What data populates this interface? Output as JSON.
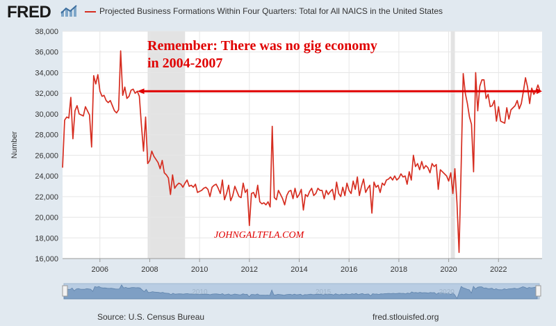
{
  "header": {
    "logo_text": "FRED",
    "logo_icon": "chart-line-icon"
  },
  "chart_data": {
    "type": "line",
    "title": "Projected Business Formations Within Four Quarters: Total for All NAICS in the United States",
    "xlabel": "",
    "ylabel": "Number",
    "ylim": [
      16000,
      38000
    ],
    "xlim": [
      "2004-07",
      "2023-10"
    ],
    "y_ticks": [
      16000,
      18000,
      20000,
      22000,
      24000,
      26000,
      28000,
      30000,
      32000,
      34000,
      36000,
      38000
    ],
    "y_tick_labels": [
      "16,000",
      "18,000",
      "20,000",
      "22,000",
      "24,000",
      "26,000",
      "28,000",
      "30,000",
      "32,000",
      "34,000",
      "36,000",
      "38,000"
    ],
    "x_tick_labels": [
      "2006",
      "2008",
      "2010",
      "2012",
      "2014",
      "2016",
      "2018",
      "2020",
      "2022"
    ],
    "grid": true,
    "recessions": [
      {
        "start": "2007-12",
        "end": "2009-06"
      },
      {
        "start": "2020-02",
        "end": "2020-04"
      }
    ],
    "series": [
      {
        "name": "Projected Business Formations Within Four Quarters: Total for All NAICS in the United States",
        "color": "#d62d20",
        "points": [
          [
            "2004-07",
            24800
          ],
          [
            "2004-08",
            29400
          ],
          [
            "2004-09",
            29700
          ],
          [
            "2004-10",
            29600
          ],
          [
            "2004-11",
            31600
          ],
          [
            "2004-12",
            27600
          ],
          [
            "2005-01",
            30300
          ],
          [
            "2005-02",
            30800
          ],
          [
            "2005-03",
            30000
          ],
          [
            "2005-04",
            29900
          ],
          [
            "2005-05",
            29800
          ],
          [
            "2005-06",
            30700
          ],
          [
            "2005-07",
            30300
          ],
          [
            "2005-08",
            29900
          ],
          [
            "2005-09",
            26800
          ],
          [
            "2005-10",
            33700
          ],
          [
            "2005-11",
            32900
          ],
          [
            "2005-12",
            33800
          ],
          [
            "2006-01",
            32200
          ],
          [
            "2006-02",
            31700
          ],
          [
            "2006-03",
            31800
          ],
          [
            "2006-04",
            31300
          ],
          [
            "2006-05",
            31100
          ],
          [
            "2006-06",
            31300
          ],
          [
            "2006-07",
            30800
          ],
          [
            "2006-08",
            30300
          ],
          [
            "2006-09",
            30100
          ],
          [
            "2006-10",
            30400
          ],
          [
            "2006-11",
            36100
          ],
          [
            "2006-12",
            31800
          ],
          [
            "2007-01",
            32600
          ],
          [
            "2007-02",
            31500
          ],
          [
            "2007-03",
            31700
          ],
          [
            "2007-04",
            32300
          ],
          [
            "2007-05",
            32400
          ],
          [
            "2007-06",
            32000
          ],
          [
            "2007-07",
            32200
          ],
          [
            "2007-08",
            31700
          ],
          [
            "2007-09",
            28900
          ],
          [
            "2007-10",
            26400
          ],
          [
            "2007-11",
            29700
          ],
          [
            "2007-12",
            25200
          ],
          [
            "2008-01",
            25500
          ],
          [
            "2008-02",
            26400
          ],
          [
            "2008-03",
            25900
          ],
          [
            "2008-04",
            25600
          ],
          [
            "2008-05",
            25300
          ],
          [
            "2008-06",
            24700
          ],
          [
            "2008-07",
            25500
          ],
          [
            "2008-08",
            24300
          ],
          [
            "2008-09",
            24100
          ],
          [
            "2008-10",
            23800
          ],
          [
            "2008-11",
            22200
          ],
          [
            "2008-12",
            24100
          ],
          [
            "2009-01",
            22800
          ],
          [
            "2009-02",
            23100
          ],
          [
            "2009-03",
            23300
          ],
          [
            "2009-04",
            23200
          ],
          [
            "2009-05",
            22900
          ],
          [
            "2009-06",
            23300
          ],
          [
            "2009-07",
            23600
          ],
          [
            "2009-08",
            23000
          ],
          [
            "2009-09",
            23100
          ],
          [
            "2009-10",
            22900
          ],
          [
            "2009-11",
            23200
          ],
          [
            "2009-12",
            22400
          ],
          [
            "2010-01",
            22500
          ],
          [
            "2010-02",
            22600
          ],
          [
            "2010-03",
            22800
          ],
          [
            "2010-04",
            22900
          ],
          [
            "2010-05",
            22700
          ],
          [
            "2010-06",
            22000
          ],
          [
            "2010-07",
            22900
          ],
          [
            "2010-08",
            23100
          ],
          [
            "2010-09",
            23200
          ],
          [
            "2010-10",
            22800
          ],
          [
            "2010-11",
            22300
          ],
          [
            "2010-12",
            23600
          ],
          [
            "2011-01",
            21700
          ],
          [
            "2011-02",
            22300
          ],
          [
            "2011-03",
            23100
          ],
          [
            "2011-04",
            21600
          ],
          [
            "2011-05",
            22100
          ],
          [
            "2011-06",
            23000
          ],
          [
            "2011-07",
            22500
          ],
          [
            "2011-08",
            22000
          ],
          [
            "2011-09",
            21900
          ],
          [
            "2011-10",
            23300
          ],
          [
            "2011-11",
            22400
          ],
          [
            "2011-12",
            22700
          ],
          [
            "2012-01",
            19200
          ],
          [
            "2012-02",
            22300
          ],
          [
            "2012-03",
            22400
          ],
          [
            "2012-04",
            21900
          ],
          [
            "2012-05",
            23100
          ],
          [
            "2012-06",
            21500
          ],
          [
            "2012-07",
            21300
          ],
          [
            "2012-08",
            21400
          ],
          [
            "2012-09",
            21200
          ],
          [
            "2012-10",
            21500
          ],
          [
            "2012-11",
            21000
          ],
          [
            "2012-12",
            28800
          ],
          [
            "2013-01",
            21900
          ],
          [
            "2013-02",
            21700
          ],
          [
            "2013-03",
            22600
          ],
          [
            "2013-04",
            22200
          ],
          [
            "2013-05",
            21800
          ],
          [
            "2013-06",
            21200
          ],
          [
            "2013-07",
            22100
          ],
          [
            "2013-08",
            22500
          ],
          [
            "2013-09",
            22600
          ],
          [
            "2013-10",
            21800
          ],
          [
            "2013-11",
            22800
          ],
          [
            "2013-12",
            21900
          ],
          [
            "2014-01",
            22200
          ],
          [
            "2014-02",
            22700
          ],
          [
            "2014-03",
            20700
          ],
          [
            "2014-04",
            22200
          ],
          [
            "2014-05",
            22000
          ],
          [
            "2014-06",
            22500
          ],
          [
            "2014-07",
            22800
          ],
          [
            "2014-08",
            22100
          ],
          [
            "2014-09",
            22300
          ],
          [
            "2014-10",
            22800
          ],
          [
            "2014-11",
            22600
          ],
          [
            "2014-12",
            22600
          ],
          [
            "2015-01",
            21800
          ],
          [
            "2015-02",
            22600
          ],
          [
            "2015-03",
            22200
          ],
          [
            "2015-04",
            22500
          ],
          [
            "2015-05",
            22700
          ],
          [
            "2015-06",
            21700
          ],
          [
            "2015-07",
            23400
          ],
          [
            "2015-08",
            22300
          ],
          [
            "2015-09",
            22000
          ],
          [
            "2015-10",
            22900
          ],
          [
            "2015-11",
            22100
          ],
          [
            "2015-12",
            23300
          ],
          [
            "2016-01",
            22600
          ],
          [
            "2016-02",
            22300
          ],
          [
            "2016-03",
            23500
          ],
          [
            "2016-04",
            22700
          ],
          [
            "2016-05",
            23900
          ],
          [
            "2016-06",
            22100
          ],
          [
            "2016-07",
            23000
          ],
          [
            "2016-08",
            23700
          ],
          [
            "2016-09",
            22400
          ],
          [
            "2016-10",
            22800
          ],
          [
            "2016-11",
            23100
          ],
          [
            "2016-12",
            20400
          ],
          [
            "2017-01",
            23400
          ],
          [
            "2017-02",
            22900
          ],
          [
            "2017-03",
            23100
          ],
          [
            "2017-04",
            22400
          ],
          [
            "2017-05",
            23300
          ],
          [
            "2017-06",
            23100
          ],
          [
            "2017-07",
            23600
          ],
          [
            "2017-08",
            23700
          ],
          [
            "2017-09",
            23900
          ],
          [
            "2017-10",
            23600
          ],
          [
            "2017-11",
            24000
          ],
          [
            "2017-12",
            23600
          ],
          [
            "2018-01",
            23800
          ],
          [
            "2018-02",
            24200
          ],
          [
            "2018-03",
            23900
          ],
          [
            "2018-04",
            24000
          ],
          [
            "2018-05",
            23200
          ],
          [
            "2018-06",
            24400
          ],
          [
            "2018-07",
            23600
          ],
          [
            "2018-08",
            26000
          ],
          [
            "2018-09",
            24900
          ],
          [
            "2018-10",
            25200
          ],
          [
            "2018-11",
            24600
          ],
          [
            "2018-12",
            25400
          ],
          [
            "2019-01",
            24700
          ],
          [
            "2019-02",
            25000
          ],
          [
            "2019-03",
            24800
          ],
          [
            "2019-04",
            24300
          ],
          [
            "2019-05",
            25200
          ],
          [
            "2019-06",
            24900
          ],
          [
            "2019-07",
            25100
          ],
          [
            "2019-08",
            22700
          ],
          [
            "2019-09",
            24600
          ],
          [
            "2019-10",
            24400
          ],
          [
            "2019-11",
            24200
          ],
          [
            "2019-12",
            24000
          ],
          [
            "2020-01",
            23500
          ],
          [
            "2020-02",
            24300
          ],
          [
            "2020-03",
            22300
          ],
          [
            "2020-04",
            24700
          ],
          [
            "2020-05",
            21400
          ],
          [
            "2020-06",
            16600
          ],
          [
            "2020-07",
            24800
          ],
          [
            "2020-08",
            33900
          ],
          [
            "2020-09",
            32000
          ],
          [
            "2020-10",
            31000
          ],
          [
            "2020-11",
            29700
          ],
          [
            "2020-12",
            29000
          ],
          [
            "2021-01",
            24400
          ],
          [
            "2021-02",
            34000
          ],
          [
            "2021-03",
            30300
          ],
          [
            "2021-04",
            32700
          ],
          [
            "2021-05",
            33300
          ],
          [
            "2021-06",
            33300
          ],
          [
            "2021-07",
            31500
          ],
          [
            "2021-08",
            31900
          ],
          [
            "2021-09",
            30700
          ],
          [
            "2021-10",
            30800
          ],
          [
            "2021-11",
            31300
          ],
          [
            "2021-12",
            29300
          ],
          [
            "2022-01",
            30700
          ],
          [
            "2022-02",
            29300
          ],
          [
            "2022-03",
            29200
          ],
          [
            "2022-04",
            29100
          ],
          [
            "2022-05",
            30600
          ],
          [
            "2022-06",
            29500
          ],
          [
            "2022-07",
            30400
          ],
          [
            "2022-08",
            30600
          ],
          [
            "2022-09",
            30800
          ],
          [
            "2022-10",
            31300
          ],
          [
            "2022-11",
            30500
          ],
          [
            "2022-12",
            31000
          ],
          [
            "2023-01",
            32200
          ],
          [
            "2023-02",
            33500
          ],
          [
            "2023-03",
            32600
          ],
          [
            "2023-04",
            31000
          ],
          [
            "2023-05",
            32500
          ],
          [
            "2023-06",
            31900
          ],
          [
            "2023-07",
            32200
          ],
          [
            "2023-08",
            32800
          ],
          [
            "2023-09",
            32200
          ]
        ]
      }
    ],
    "annotations": {
      "headline_line1": "Remember: There was no gig economy",
      "headline_line2": "in 2004-2007",
      "reference_line": {
        "y": 32200,
        "from": "2007-07",
        "to": "2023-10",
        "color": "#e00000"
      },
      "watermark": "JOHNGALTFLA.COM"
    },
    "navigator": {
      "tick_labels": [
        "2010",
        "2015",
        "2020"
      ]
    }
  },
  "footer": {
    "source": "Source: U.S. Census Bureau",
    "link": "fred.stlouisfed.org"
  },
  "colors": {
    "line": "#d62d20",
    "annotation": "#e00000",
    "background": "#e1e9f0",
    "plot_background": "#ffffff",
    "recession": "#e3e3e3"
  }
}
